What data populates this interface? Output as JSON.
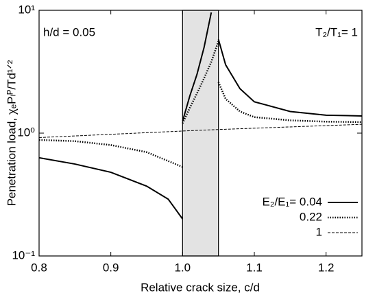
{
  "chart_data": {
    "type": "line",
    "xlabel": "Relative crack size, c/d",
    "ylabel": "Penetration load, χₑPₗᴾ/Td¹ᐟ²",
    "annotations": [
      "h/d = 0.05",
      "T₂/T₁= 1"
    ],
    "xlim": [
      0.8,
      1.25
    ],
    "xticks": [
      0.8,
      0.9,
      {
        "value": 1,
        "label": "1.0"
      },
      1.1,
      1.2
    ],
    "ylim": [
      0.1,
      10
    ],
    "yticks": [
      {
        "value": 0.1,
        "label": "10⁻¹"
      },
      {
        "value": 1,
        "label": "10⁰"
      },
      {
        "value": 10,
        "label": "10¹"
      }
    ],
    "yscale": "log",
    "shaded_xrange": [
      1,
      1.05
    ],
    "shade_color": "#e3e3e3",
    "legend": "lower right",
    "series": [
      {
        "name": "E₂/E₁= 0.04",
        "color": "#000000",
        "width": 2,
        "dash": "none",
        "x": [
          0.8,
          0.85,
          0.9,
          0.95,
          0.98,
          1.0,
          null,
          1.0,
          1.01,
          1.02,
          1.03,
          1.04,
          null,
          1.05,
          1.06,
          1.08,
          1.1,
          1.15,
          1.2,
          1.25
        ],
        "values": [
          0.63,
          0.56,
          0.48,
          0.37,
          0.29,
          0.2,
          null,
          1.25,
          2.0,
          3.0,
          5.0,
          9.6,
          null,
          5.8,
          3.6,
          2.3,
          1.8,
          1.5,
          1.4,
          1.38
        ]
      },
      {
        "name": "0.22",
        "color": "#000000",
        "width": 2.5,
        "dash": "1.5 2",
        "x": [
          0.8,
          0.85,
          0.9,
          0.95,
          1.0,
          null,
          1.0,
          1.01,
          1.02,
          1.03,
          1.04,
          1.05,
          null,
          1.05,
          1.06,
          1.08,
          1.1,
          1.15,
          1.2,
          1.25
        ],
        "values": [
          0.88,
          0.86,
          0.8,
          0.7,
          0.53,
          null,
          1.2,
          1.6,
          2.1,
          2.8,
          3.8,
          5.6,
          null,
          2.6,
          1.9,
          1.5,
          1.35,
          1.27,
          1.24,
          1.23
        ]
      },
      {
        "name": "1",
        "color": "#000000",
        "width": 1,
        "dash": "4 2",
        "x": [
          0.8,
          1.0,
          1.05,
          1.25
        ],
        "values": [
          0.92,
          1.04,
          1.07,
          1.18
        ]
      }
    ]
  }
}
